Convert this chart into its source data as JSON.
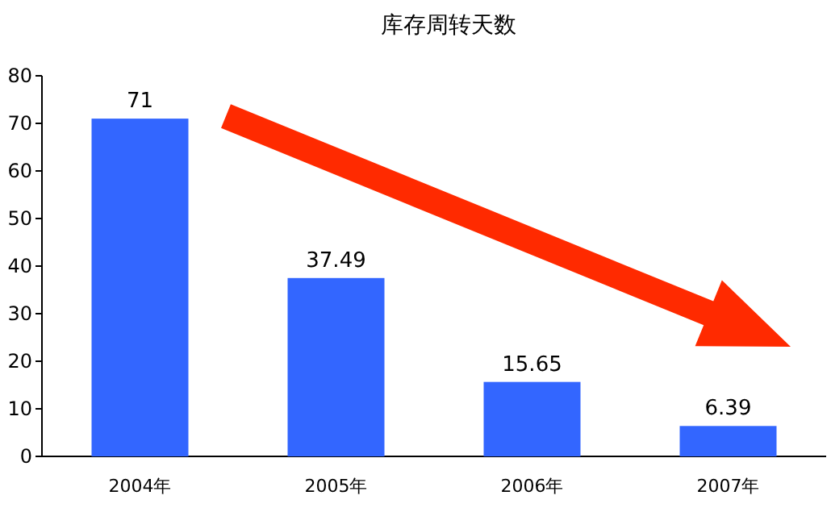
{
  "chart_data": {
    "type": "bar",
    "title": "库存周转天数",
    "categories": [
      "2004年",
      "2005年",
      "2006年",
      "2007年"
    ],
    "values": [
      71,
      37.49,
      15.65,
      6.39
    ],
    "color": "#3366ff",
    "ylim": [
      0,
      80
    ],
    "yticks": [
      0,
      10,
      20,
      30,
      40,
      50,
      60,
      70,
      80
    ],
    "data_labels": true
  }
}
